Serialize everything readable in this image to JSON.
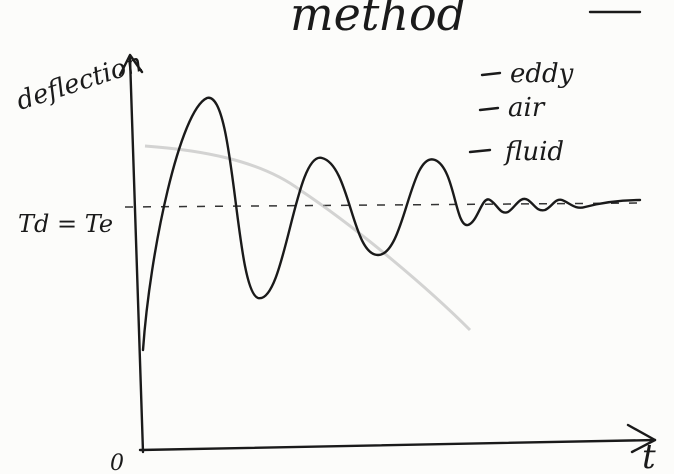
{
  "title": "method",
  "y_axis_label": "deflection",
  "x_axis_label": "t",
  "origin_label": "0",
  "reference_label": "Td = Te",
  "legend": [
    "eddy",
    "air",
    "fluid"
  ]
}
